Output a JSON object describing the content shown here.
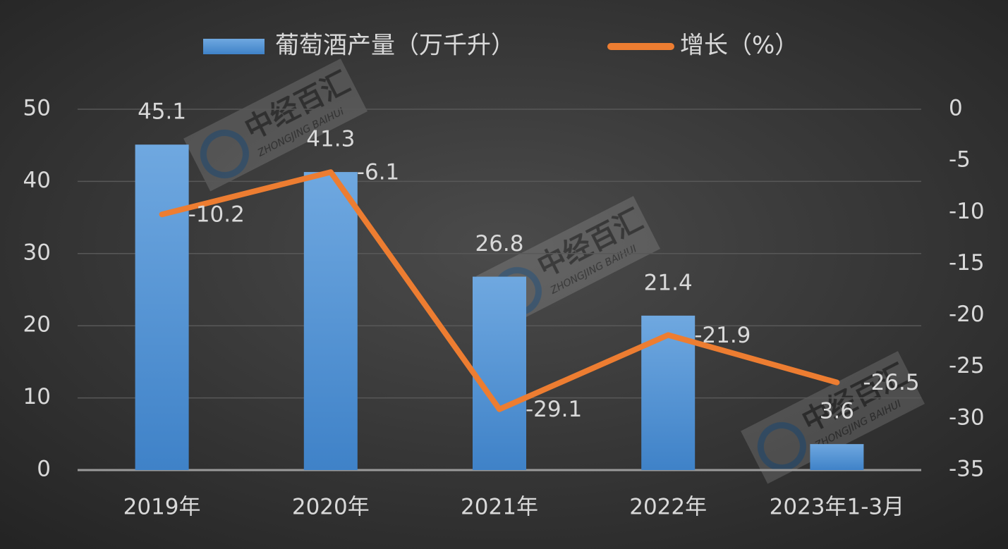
{
  "chart_data": {
    "type": "bar",
    "categories": [
      "2019年",
      "2020年",
      "2021年",
      "2022年",
      "2023年1-3月"
    ],
    "series": [
      {
        "name": "葡萄酒产量（万千升）",
        "color": "#5b9bd5",
        "values": [
          45.1,
          41.3,
          26.8,
          21.4,
          3.6
        ]
      },
      {
        "name": "增长（%）",
        "type": "line",
        "axis": "y2",
        "color": "#ed7d31",
        "values": [
          -10.2,
          -6.1,
          -29.1,
          -21.9,
          -26.5
        ]
      }
    ],
    "ylim": [
      0,
      50
    ],
    "yticks": [
      0,
      10,
      20,
      30,
      40,
      50
    ],
    "y2lim": [
      -35,
      0
    ],
    "y2ticks": [
      -35,
      -30,
      -25,
      -20,
      -15,
      -10,
      -5,
      0
    ],
    "grid": true,
    "legend": "top",
    "watermark": {
      "text": "中经百汇",
      "subtext": "ZHONGJING BAIHUI"
    }
  }
}
